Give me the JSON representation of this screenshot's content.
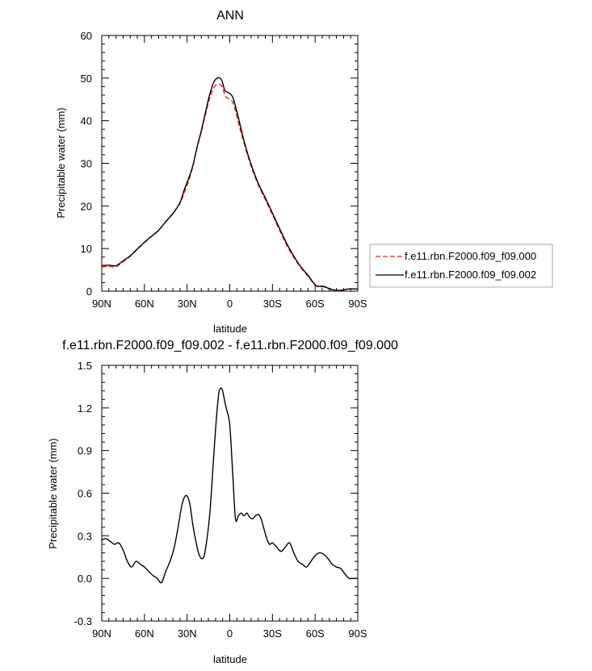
{
  "chart_data": [
    {
      "type": "line",
      "title": "ANN",
      "xlabel": "latitude",
      "ylabel": "Precipitable water (mm)",
      "xlim": [
        90,
        -90
      ],
      "ylim": [
        0,
        60
      ],
      "xticks": [
        90,
        60,
        30,
        0,
        -30,
        -60,
        -90
      ],
      "xtick_labels": [
        "90N",
        "60N",
        "30N",
        "0",
        "30S",
        "60S",
        "90S"
      ],
      "yticks": [
        0,
        10,
        20,
        30,
        40,
        50,
        60
      ],
      "ytick_labels": [
        "0",
        "10",
        "20",
        "30",
        "40",
        "50",
        "60"
      ],
      "legend_position": "right",
      "series": [
        {
          "name": "f.e11.rbn.F2000.f09_f09.000",
          "color": "#e4251d",
          "dash": "dashed",
          "x": [
            90,
            85,
            80,
            75,
            70,
            65,
            60,
            55,
            50,
            45,
            40,
            35,
            32,
            29,
            26,
            23,
            20,
            17,
            14,
            11,
            8,
            6,
            5,
            4,
            3,
            1,
            0,
            -2,
            -4,
            -6,
            -8,
            -10,
            -13,
            -16,
            -20,
            -25,
            -30,
            -35,
            -40,
            -45,
            -50,
            -55,
            -60,
            -63,
            -65,
            -67,
            -70,
            -73,
            -75,
            -78,
            -80,
            -83,
            -85,
            -88,
            -90
          ],
          "y": [
            5.7,
            5.8,
            5.7,
            6.9,
            8.2,
            9.8,
            11.4,
            12.8,
            14.3,
            16.3,
            18.3,
            20.6,
            23.1,
            25.8,
            29.2,
            33.6,
            37.4,
            41.6,
            45.4,
            47.9,
            48.6,
            48.3,
            47.7,
            46.6,
            45.7,
            45.2,
            45.0,
            44.4,
            42.4,
            39.6,
            37.2,
            34.8,
            31.4,
            28.4,
            25.0,
            21.5,
            17.9,
            14.3,
            10.8,
            7.9,
            5.5,
            3.5,
            1.4,
            1.0,
            1.1,
            0.9,
            0.5,
            0.2,
            0.1,
            0.1,
            0.3,
            0.5,
            0.5,
            0.5,
            0.5
          ]
        },
        {
          "name": "f.e11.rbn.F2000.f09_f09.002",
          "color": "#000000",
          "dash": "solid",
          "x": [
            90,
            85,
            80,
            75,
            70,
            65,
            60,
            55,
            50,
            45,
            40,
            35,
            32,
            29,
            26,
            23,
            20,
            17,
            14,
            11,
            8,
            6,
            5,
            4,
            3,
            1,
            0,
            -2,
            -4,
            -6,
            -8,
            -10,
            -13,
            -16,
            -20,
            -25,
            -30,
            -35,
            -40,
            -45,
            -50,
            -55,
            -60,
            -63,
            -65,
            -67,
            -70,
            -73,
            -75,
            -78,
            -80,
            -83,
            -85,
            -88,
            -90
          ],
          "y": [
            6.0,
            6.1,
            6.0,
            7.1,
            8.3,
            9.9,
            11.5,
            12.9,
            14.3,
            16.3,
            18.2,
            20.8,
            23.8,
            26.4,
            29.4,
            33.8,
            37.7,
            42.1,
            46.3,
            49.2,
            50.1,
            49.7,
            48.9,
            47.6,
            46.9,
            46.6,
            46.4,
            45.6,
            43.4,
            40.8,
            38.0,
            35.3,
            31.8,
            28.8,
            25.3,
            21.9,
            18.3,
            14.7,
            11.2,
            8.2,
            5.7,
            3.7,
            1.5,
            1.1,
            1.2,
            1.0,
            0.6,
            0.3,
            0.2,
            0.2,
            0.3,
            0.5,
            0.5,
            0.5,
            0.5
          ]
        }
      ]
    },
    {
      "type": "line",
      "title": "f.e11.rbn.F2000.f09_f09.002 - f.e11.rbn.F2000.f09_f09.000",
      "xlabel": "latitude",
      "ylabel": "Precipitable water (mm)",
      "xlim": [
        90,
        -90
      ],
      "ylim": [
        -0.3,
        1.5
      ],
      "xticks": [
        90,
        60,
        30,
        0,
        -30,
        -60,
        -90
      ],
      "xtick_labels": [
        "90N",
        "60N",
        "30N",
        "0",
        "30S",
        "60S",
        "90S"
      ],
      "yticks": [
        -0.3,
        0.0,
        0.3,
        0.6,
        0.9,
        1.2,
        1.5
      ],
      "ytick_labels": [
        "-0.3",
        "0.0",
        "0.3",
        "0.6",
        "0.9",
        "1.2",
        "1.5"
      ],
      "series": [
        {
          "color": "#000000",
          "dash": "solid",
          "x": [
            90,
            87,
            84,
            81,
            78,
            75,
            72,
            69,
            66,
            63,
            60,
            57,
            54,
            51,
            48,
            45,
            42,
            39,
            36,
            34,
            32,
            30,
            28,
            26,
            24,
            22,
            20,
            18,
            16,
            14,
            12,
            10,
            8,
            7,
            6,
            5,
            4,
            3,
            2,
            0,
            -2,
            -4,
            -6,
            -8,
            -10,
            -12,
            -14,
            -16,
            -18,
            -20,
            -22,
            -24,
            -26,
            -28,
            -30,
            -33,
            -36,
            -39,
            -42,
            -45,
            -48,
            -51,
            -54,
            -57,
            -60,
            -63,
            -66,
            -69,
            -72,
            -75,
            -78,
            -81,
            -84,
            -87,
            -90
          ],
          "y": [
            0.27,
            0.28,
            0.26,
            0.24,
            0.25,
            0.2,
            0.12,
            0.08,
            0.12,
            0.1,
            0.08,
            0.05,
            0.02,
            0.0,
            -0.03,
            0.05,
            0.12,
            0.22,
            0.38,
            0.5,
            0.57,
            0.58,
            0.52,
            0.38,
            0.27,
            0.18,
            0.14,
            0.16,
            0.28,
            0.46,
            0.75,
            1.05,
            1.28,
            1.33,
            1.34,
            1.32,
            1.27,
            1.22,
            1.18,
            1.08,
            0.75,
            0.42,
            0.44,
            0.46,
            0.44,
            0.46,
            0.43,
            0.42,
            0.44,
            0.45,
            0.42,
            0.35,
            0.28,
            0.24,
            0.25,
            0.22,
            0.19,
            0.22,
            0.25,
            0.18,
            0.12,
            0.1,
            0.08,
            0.12,
            0.16,
            0.18,
            0.17,
            0.14,
            0.1,
            0.08,
            0.07,
            0.03,
            0.0,
            0.0,
            0.0
          ]
        }
      ]
    }
  ]
}
